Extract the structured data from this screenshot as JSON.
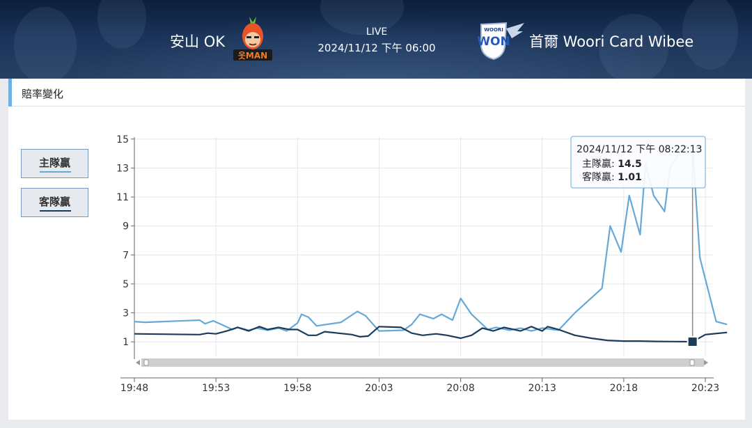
{
  "match": {
    "home_team": "安山 OK",
    "away_team": "首爾 Woori Card Wibee",
    "status": "LIVE",
    "datetime": "2024/11/12 下午 06:00",
    "home_logo_text": "옷MAN",
    "away_logo_text": "WON",
    "away_logo_sub": "WOORI"
  },
  "section": {
    "title": "賠率變化"
  },
  "legend": {
    "home_label": "主隊贏",
    "away_label": "客隊贏",
    "home_color": "#66a8d6",
    "away_color": "#1c3a59"
  },
  "tooltip": {
    "time": "2024/11/12 下午 08:22:13",
    "home_label": "主隊贏",
    "home_value": "14.5",
    "away_label": "客隊贏",
    "away_value": "1.01"
  },
  "chart_data": {
    "type": "line",
    "x_unit": "time",
    "xlim": [
      "19:48",
      "20:23"
    ],
    "x_ticks": [
      "19:48",
      "19:53",
      "19:58",
      "20:03",
      "20:08",
      "20:13",
      "20:18",
      "20:23"
    ],
    "ylim": [
      0,
      16
    ],
    "y_ticks": [
      1,
      3,
      5,
      7,
      9,
      11,
      13,
      15
    ],
    "grid": true,
    "legend_position": "left",
    "series": [
      {
        "name": "主隊贏",
        "color": "#66a8d6",
        "points": [
          [
            "19:48:00",
            2.4
          ],
          [
            "19:48:40",
            2.35
          ],
          [
            "19:52:00",
            2.5
          ],
          [
            "19:52:20",
            2.25
          ],
          [
            "19:52:50",
            2.45
          ],
          [
            "19:53:20",
            2.2
          ],
          [
            "19:54:00",
            1.85
          ],
          [
            "19:54:20",
            2.0
          ],
          [
            "19:55:00",
            1.8
          ],
          [
            "19:55:30",
            1.95
          ],
          [
            "19:56:10",
            1.8
          ],
          [
            "19:56:50",
            1.95
          ],
          [
            "19:57:20",
            1.75
          ],
          [
            "19:58:00",
            2.3
          ],
          [
            "19:58:15",
            2.9
          ],
          [
            "19:58:40",
            2.7
          ],
          [
            "19:59:10",
            2.1
          ],
          [
            "20:00:40",
            2.35
          ],
          [
            "20:01:40",
            3.1
          ],
          [
            "20:02:10",
            2.8
          ],
          [
            "20:03:00",
            1.75
          ],
          [
            "20:04:30",
            1.8
          ],
          [
            "20:05:00",
            2.2
          ],
          [
            "20:05:30",
            2.9
          ],
          [
            "20:06:20",
            2.6
          ],
          [
            "20:06:50",
            2.9
          ],
          [
            "20:07:30",
            2.5
          ],
          [
            "20:08:00",
            4.0
          ],
          [
            "20:08:40",
            2.9
          ],
          [
            "20:09:40",
            1.85
          ],
          [
            "20:10:10",
            2.0
          ],
          [
            "20:11:00",
            1.8
          ],
          [
            "20:11:40",
            1.95
          ],
          [
            "20:12:20",
            1.75
          ],
          [
            "20:13:00",
            1.95
          ],
          [
            "20:14:00",
            1.8
          ],
          [
            "20:15:00",
            3.0
          ],
          [
            "20:16:40",
            4.7
          ],
          [
            "20:17:10",
            9.0
          ],
          [
            "20:17:50",
            7.2
          ],
          [
            "20:18:20",
            11.1
          ],
          [
            "20:19:00",
            8.4
          ],
          [
            "20:19:20",
            13.3
          ],
          [
            "20:19:50",
            11.1
          ],
          [
            "20:20:30",
            10.0
          ],
          [
            "20:20:50",
            13.0
          ],
          [
            "20:21:40",
            14.5
          ],
          [
            "20:22:13",
            14.5
          ],
          [
            "20:22:40",
            6.8
          ],
          [
            "20:23:40",
            2.4
          ],
          [
            "20:24:20",
            2.2
          ]
        ]
      },
      {
        "name": "客隊贏",
        "color": "#1c3a59",
        "points": [
          [
            "19:48:00",
            1.55
          ],
          [
            "19:52:00",
            1.5
          ],
          [
            "19:52:30",
            1.6
          ],
          [
            "19:53:00",
            1.55
          ],
          [
            "19:53:40",
            1.75
          ],
          [
            "19:54:20",
            2.0
          ],
          [
            "19:55:00",
            1.75
          ],
          [
            "19:55:40",
            2.05
          ],
          [
            "19:56:10",
            1.85
          ],
          [
            "19:56:50",
            2.0
          ],
          [
            "19:57:30",
            1.85
          ],
          [
            "19:58:00",
            1.85
          ],
          [
            "19:58:40",
            1.45
          ],
          [
            "19:59:10",
            1.45
          ],
          [
            "19:59:40",
            1.7
          ],
          [
            "20:01:20",
            1.5
          ],
          [
            "20:01:50",
            1.35
          ],
          [
            "20:02:20",
            1.4
          ],
          [
            "20:03:00",
            2.05
          ],
          [
            "20:04:20",
            2.0
          ],
          [
            "20:05:00",
            1.6
          ],
          [
            "20:05:40",
            1.45
          ],
          [
            "20:06:30",
            1.55
          ],
          [
            "20:07:10",
            1.45
          ],
          [
            "20:08:00",
            1.25
          ],
          [
            "20:08:40",
            1.45
          ],
          [
            "20:09:20",
            1.95
          ],
          [
            "20:10:00",
            1.75
          ],
          [
            "20:10:40",
            2.0
          ],
          [
            "20:11:40",
            1.75
          ],
          [
            "20:12:20",
            2.05
          ],
          [
            "20:13:00",
            1.75
          ],
          [
            "20:13:20",
            2.05
          ],
          [
            "20:14:00",
            1.85
          ],
          [
            "20:15:00",
            1.45
          ],
          [
            "20:16:00",
            1.25
          ],
          [
            "20:17:00",
            1.1
          ],
          [
            "20:18:00",
            1.05
          ],
          [
            "20:19:00",
            1.05
          ],
          [
            "20:20:00",
            1.03
          ],
          [
            "20:21:00",
            1.02
          ],
          [
            "20:22:13",
            1.01
          ],
          [
            "20:23:00",
            1.5
          ],
          [
            "20:24:20",
            1.65
          ]
        ]
      }
    ],
    "highlight": {
      "time": "20:22:13",
      "home": 14.5,
      "away": 1.01
    }
  }
}
